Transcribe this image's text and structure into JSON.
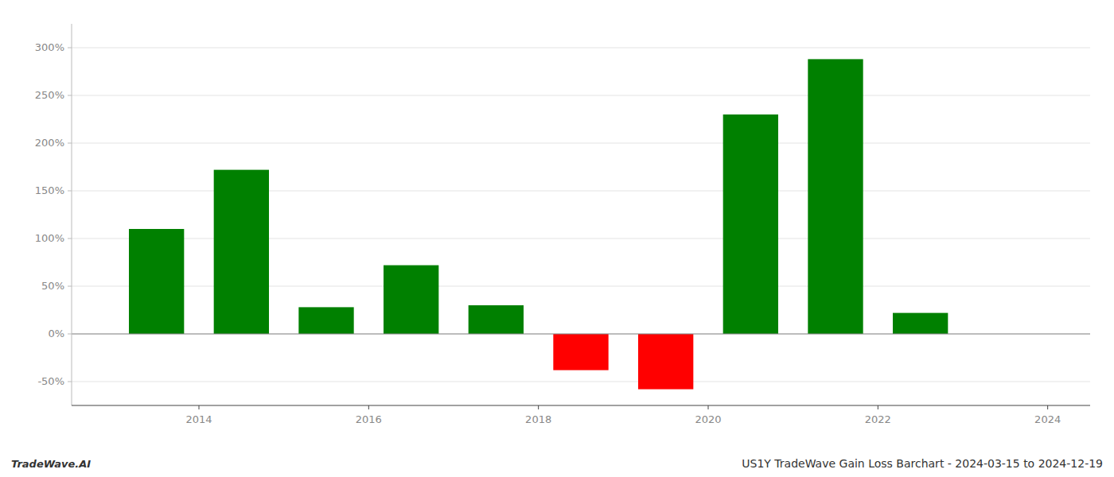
{
  "chart_data": {
    "type": "bar",
    "title": "US1Y TradeWave Gain Loss Barchart - 2024-03-15 to 2024-12-19",
    "annotations": [
      "TradeWave.AI"
    ],
    "x": [
      2013.5,
      2014.5,
      2015.5,
      2016.5,
      2017.5,
      2018.5,
      2019.5,
      2020.5,
      2021.5,
      2022.5
    ],
    "values": [
      110,
      172,
      28,
      72,
      30,
      -38,
      -58,
      230,
      288,
      22
    ],
    "colors": [
      "#008000",
      "#008000",
      "#008000",
      "#008000",
      "#008000",
      "#ff0000",
      "#ff0000",
      "#008000",
      "#008000",
      "#008000"
    ],
    "xlim": [
      2012.5,
      2024.5
    ],
    "xticks": [
      2014,
      2016,
      2018,
      2020,
      2022,
      2024
    ],
    "ylim": [
      -75,
      325
    ],
    "yticks": [
      {
        "value": -50,
        "label": "-50%"
      },
      {
        "value": 0,
        "label": "0%"
      },
      {
        "value": 50,
        "label": "50%"
      },
      {
        "value": 100,
        "label": "100%"
      },
      {
        "value": 150,
        "label": "150%"
      },
      {
        "value": 200,
        "label": "200%"
      },
      {
        "value": 250,
        "label": "250%"
      },
      {
        "value": 300,
        "label": "300%"
      }
    ],
    "grid": true
  }
}
